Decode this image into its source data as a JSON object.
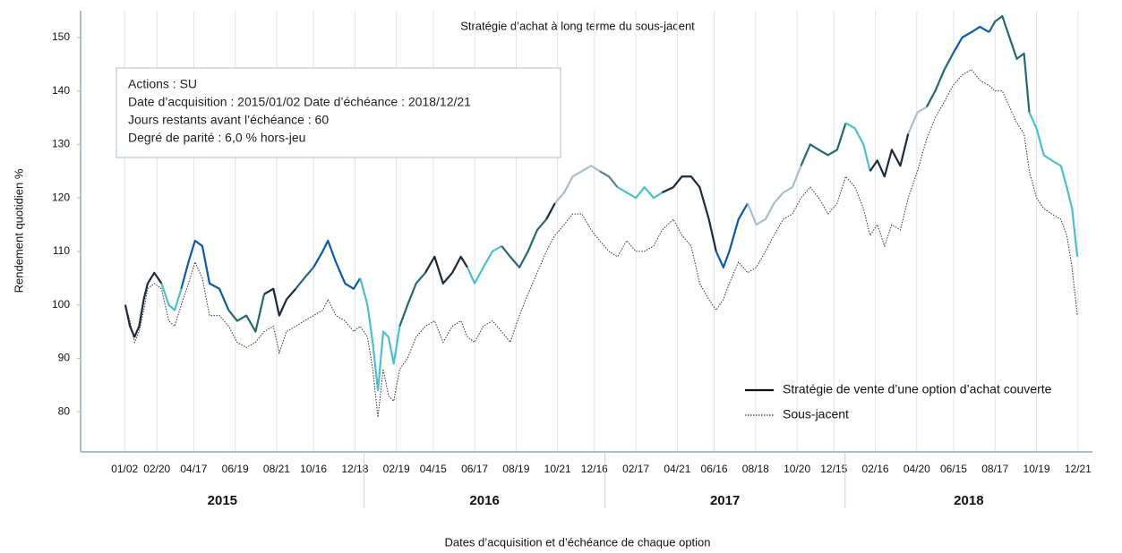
{
  "chart_data": {
    "type": "line",
    "title": "Stratégie d’achat à long terme du sous-jacent",
    "xlabel": "Dates d’acquisition et d’échéance de chaque option",
    "ylabel": "Rendement quotidien  %",
    "annotation": [
      "Actions : SU",
      "Date d’acquisition : 2015/01/02 Date d’échéance : 2018/12/21",
      "Jours restants avant l’échéance : 60",
      "Degré de parité : 6,0 % hors-jeu"
    ],
    "legend_position": "lower right",
    "xlim": [
      -67,
      1471
    ],
    "ylim": [
      72.5,
      155
    ],
    "yticks": [
      80,
      90,
      100,
      110,
      120,
      130,
      140,
      150
    ],
    "xticks": [
      {
        "value": 0,
        "label": "01/02"
      },
      {
        "value": 49,
        "label": "02/20"
      },
      {
        "value": 105,
        "label": "04/17"
      },
      {
        "value": 168,
        "label": "06/19"
      },
      {
        "value": 231,
        "label": "08/21"
      },
      {
        "value": 287,
        "label": "10/16"
      },
      {
        "value": 350,
        "label": "12/18"
      },
      {
        "value": 413,
        "label": "02/19"
      },
      {
        "value": 469,
        "label": "04/15"
      },
      {
        "value": 532,
        "label": "06/17"
      },
      {
        "value": 595,
        "label": "08/19"
      },
      {
        "value": 658,
        "label": "10/21"
      },
      {
        "value": 714,
        "label": "12/16"
      },
      {
        "value": 777,
        "label": "02/17"
      },
      {
        "value": 840,
        "label": "04/21"
      },
      {
        "value": 896,
        "label": "06/16"
      },
      {
        "value": 959,
        "label": "08/18"
      },
      {
        "value": 1022,
        "label": "10/20"
      },
      {
        "value": 1078,
        "label": "12/15"
      },
      {
        "value": 1141,
        "label": "02/16"
      },
      {
        "value": 1204,
        "label": "04/20"
      },
      {
        "value": 1260,
        "label": "06/15"
      },
      {
        "value": 1323,
        "label": "08/17"
      },
      {
        "value": 1386,
        "label": "10/19"
      },
      {
        "value": 1449,
        "label": "12/21"
      }
    ],
    "x_groups": [
      {
        "label": "2015",
        "range": [
          -67,
          364
        ]
      },
      {
        "label": "2016",
        "range": [
          364,
          730
        ]
      },
      {
        "label": "2017",
        "range": [
          730,
          1095
        ]
      },
      {
        "label": "2018",
        "range": [
          1095,
          1471
        ]
      }
    ],
    "series": [
      {
        "name": "Stratégie de vente d’une option d’achat couverte",
        "color": "#111111",
        "style": "solid",
        "x": [
          1,
          8,
          15,
          22,
          29,
          35,
          45,
          56,
          67,
          76,
          86,
          97,
          107,
          118,
          129,
          144,
          158,
          171,
          185,
          199,
          212,
          226,
          235,
          246,
          260,
          273,
          287,
          301,
          309,
          321,
          335,
          348,
          358,
          369,
          377,
          385,
          393,
          401,
          409,
          418,
          430,
          443,
          457,
          471,
          484,
          498,
          511,
          521,
          532,
          545,
          559,
          573,
          586,
          600,
          613,
          627,
          641,
          654,
          668,
          681,
          695,
          709,
          722,
          736,
          749,
          763,
          777,
          790,
          804,
          817,
          834,
          847,
          861,
          874,
          888,
          899,
          910,
          919,
          933,
          947,
          960,
          974,
          987,
          1001,
          1015,
          1028,
          1042,
          1055,
          1069,
          1083,
          1096,
          1110,
          1123,
          1133,
          1144,
          1155,
          1166,
          1179,
          1191,
          1205,
          1219,
          1232,
          1246,
          1259,
          1273,
          1287,
          1300,
          1314,
          1323,
          1334,
          1345,
          1356,
          1367,
          1375,
          1386,
          1397,
          1409,
          1423,
          1432,
          1440,
          1448
        ],
        "values": [
          100,
          96,
          94,
          96,
          101,
          104,
          106,
          104,
          100,
          99,
          103,
          108,
          112,
          111,
          104,
          103,
          99,
          97,
          98,
          95,
          102,
          103,
          98,
          101,
          103,
          105,
          107,
          110,
          112,
          108,
          104,
          103,
          105,
          100,
          93,
          84,
          95,
          94,
          89,
          96,
          100,
          104,
          106,
          109,
          104,
          106,
          109,
          107,
          104,
          107,
          110,
          111,
          109,
          107,
          110,
          114,
          116,
          119,
          121,
          124,
          125,
          126,
          125,
          124,
          122,
          121,
          120,
          122,
          120,
          121,
          122,
          124,
          124,
          122,
          116,
          110,
          107,
          110,
          116,
          119,
          115,
          116,
          119,
          121,
          122,
          126,
          130,
          129,
          128,
          129,
          134,
          133,
          130,
          125,
          127,
          124,
          129,
          126,
          132,
          136,
          137,
          140,
          144,
          147,
          150,
          151,
          152,
          151,
          153,
          154,
          150,
          146,
          147,
          136,
          133,
          128,
          127,
          126,
          122,
          118,
          109
        ],
        "segment_colors": [
          "#1b2b3b",
          "#1b2b3b",
          "#1b2b3b",
          "#1b2b3b",
          "#1b2b3b",
          "#1b2b3b",
          "#1b2b3b",
          "#4cc0cb",
          "#4cc0cb",
          "#4cc0cb",
          "#0b5ca8",
          "#0b5ca8",
          "#0b5ca8",
          "#0b5ca8",
          "#0b5ca8",
          "#0b5ca8",
          "#236b71",
          "#236b71",
          "#236b71",
          "#236b71",
          "#1b2b3b",
          "#1b2b3b",
          "#1b2b3b",
          "#1b2b3b",
          "#236b71",
          "#236b71",
          "#0b5ca8",
          "#0b5ca8",
          "#0b5ca8",
          "#0b5ca8",
          "#0b5ca8",
          "#0b5ca8",
          "#4cc0cb",
          "#4cc0cb",
          "#4cc0cb",
          "#4cc0cb",
          "#4cc0cb",
          "#4cc0cb",
          "#4cc0cb",
          "#236b71",
          "#236b71",
          "#236b71",
          "#1b2b3b",
          "#1b2b3b",
          "#1b2b3b",
          "#1b2b3b",
          "#1b2b3b",
          "#4cc0cb",
          "#4cc0cb",
          "#4cc0cb",
          "#4cc0cb",
          "#236b71",
          "#236b71",
          "#236b71",
          "#236b71",
          "#236b71",
          "#1b2b3b",
          "#a9bfcc",
          "#a9bfcc",
          "#a9bfcc",
          "#a9bfcc",
          "#a9bfcc",
          "#5e7f8f",
          "#5e7f8f",
          "#4cc0cb",
          "#4cc0cb",
          "#4cc0cb",
          "#4cc0cb",
          "#4cc0cb",
          "#1b2b3b",
          "#1b2b3b",
          "#1b2b3b",
          "#1b2b3b",
          "#1b2b3b",
          "#1b2b3b",
          "#0b5ca8",
          "#0b5ca8",
          "#0b5ca8",
          "#0b5ca8",
          "#a9bfcc",
          "#a9bfcc",
          "#a9bfcc",
          "#a9bfcc",
          "#a9bfcc",
          "#a9bfcc",
          "#236b71",
          "#236b71",
          "#236b71",
          "#236b71",
          "#236b71",
          "#4cc0cb",
          "#4cc0cb",
          "#4cc0cb",
          "#1b2b3b",
          "#1b2b3b",
          "#1b2b3b",
          "#1b2b3b",
          "#1b2b3b",
          "#a9bfcc",
          "#a9bfcc",
          "#236b71",
          "#236b71",
          "#236b71",
          "#0b5ca8",
          "#0b5ca8",
          "#0b5ca8",
          "#0b5ca8",
          "#236b71",
          "#236b71",
          "#236b71",
          "#236b71",
          "#236b71",
          "#236b71",
          "#4cc0cb",
          "#4cc0cb",
          "#4cc0cb",
          "#4cc0cb",
          "#4cc0cb",
          "#4cc0cb",
          "#4cc0cb",
          "#4cc0cb"
        ]
      },
      {
        "name": "Sous-jacent",
        "color": "#333333",
        "style": "dotted",
        "x": [
          1,
          8,
          15,
          22,
          29,
          35,
          45,
          56,
          67,
          76,
          86,
          97,
          107,
          118,
          129,
          144,
          158,
          171,
          185,
          199,
          212,
          226,
          235,
          246,
          260,
          273,
          287,
          301,
          309,
          321,
          335,
          348,
          358,
          369,
          377,
          385,
          393,
          401,
          409,
          418,
          430,
          443,
          457,
          471,
          484,
          498,
          511,
          521,
          532,
          545,
          559,
          573,
          586,
          600,
          613,
          627,
          641,
          654,
          668,
          681,
          695,
          709,
          722,
          736,
          749,
          763,
          777,
          790,
          804,
          817,
          834,
          847,
          861,
          874,
          888,
          899,
          910,
          919,
          933,
          947,
          960,
          974,
          987,
          1001,
          1015,
          1028,
          1042,
          1055,
          1069,
          1083,
          1096,
          1110,
          1123,
          1133,
          1144,
          1155,
          1166,
          1179,
          1191,
          1205,
          1219,
          1232,
          1246,
          1259,
          1273,
          1287,
          1300,
          1314,
          1323,
          1334,
          1345,
          1356,
          1367,
          1375,
          1386,
          1397,
          1409,
          1423,
          1432,
          1440,
          1448
        ],
        "values": [
          100,
          97,
          93,
          95,
          99,
          103,
          104,
          103,
          97,
          96,
          100,
          104,
          108,
          105,
          98,
          98,
          96,
          93,
          92,
          93,
          95,
          96,
          91,
          95,
          96,
          97,
          98,
          99,
          101,
          98,
          97,
          95,
          96,
          94,
          88,
          79,
          88,
          83,
          82,
          88,
          90,
          94,
          96,
          97,
          93,
          96,
          97,
          94,
          93,
          96,
          97,
          95,
          93,
          98,
          102,
          106,
          110,
          113,
          115,
          117,
          117,
          114,
          112,
          110,
          109,
          112,
          110,
          110,
          111,
          114,
          116,
          113,
          111,
          104,
          101,
          99,
          101,
          104,
          108,
          106,
          107,
          110,
          113,
          116,
          117,
          120,
          122,
          120,
          117,
          119,
          124,
          122,
          118,
          113,
          115,
          111,
          115,
          114,
          120,
          125,
          131,
          135,
          138,
          141,
          143,
          144,
          142,
          141,
          140,
          140,
          137,
          134,
          132,
          125,
          120,
          118,
          117,
          116,
          113,
          107,
          98
        ]
      }
    ]
  }
}
